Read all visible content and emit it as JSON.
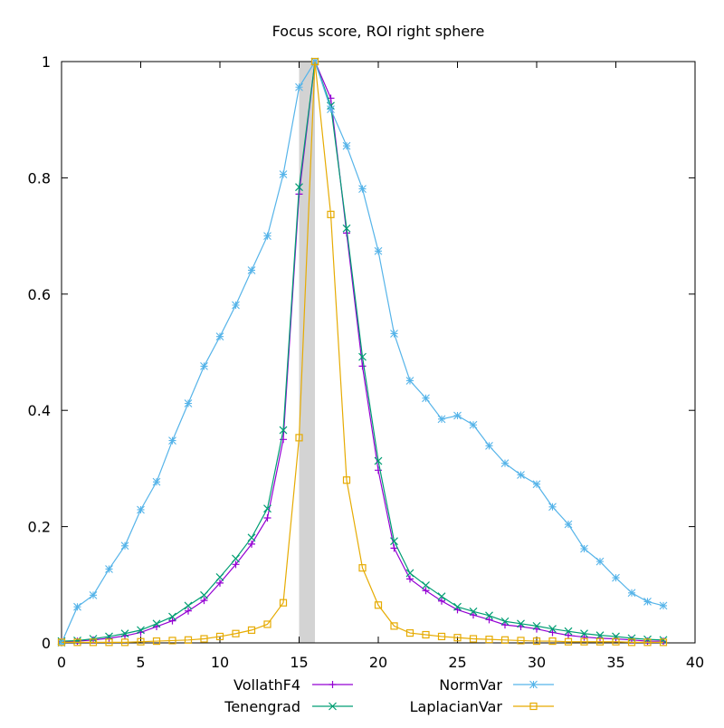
{
  "chart_data": {
    "type": "line",
    "title": "Focus score, ROI right sphere",
    "xlabel": "",
    "ylabel": "",
    "xlim": [
      0,
      40
    ],
    "ylim": [
      0,
      1
    ],
    "xticks": [
      0,
      5,
      10,
      15,
      20,
      25,
      30,
      35,
      40
    ],
    "xtick_labels": [
      "0",
      "5",
      "10",
      "15",
      "20",
      "25",
      "30",
      "35",
      "40"
    ],
    "yticks": [
      0,
      0.2,
      0.4,
      0.6,
      0.8,
      1
    ],
    "ytick_labels": [
      "0",
      "0.2",
      "0.4",
      "0.6",
      "0.8",
      "1"
    ],
    "grid": false,
    "legend_position": "bottom",
    "highlight_band": {
      "x_from": 15,
      "x_to": 16,
      "color": "#d3d3d3"
    },
    "x": [
      0,
      1,
      2,
      3,
      4,
      5,
      6,
      7,
      8,
      9,
      10,
      11,
      12,
      13,
      14,
      15,
      16,
      17,
      18,
      19,
      20,
      21,
      22,
      23,
      24,
      25,
      26,
      27,
      28,
      29,
      30,
      31,
      32,
      33,
      34,
      35,
      36,
      37,
      38
    ],
    "series": [
      {
        "name": "VollathF4",
        "color": "#9400d3",
        "marker": "plus",
        "values": [
          0.002,
          0.003,
          0.005,
          0.008,
          0.012,
          0.018,
          0.028,
          0.038,
          0.055,
          0.073,
          0.103,
          0.135,
          0.17,
          0.215,
          0.35,
          0.772,
          1.0,
          0.937,
          0.705,
          0.476,
          0.297,
          0.163,
          0.11,
          0.09,
          0.072,
          0.057,
          0.048,
          0.04,
          0.031,
          0.028,
          0.024,
          0.018,
          0.013,
          0.01,
          0.008,
          0.007,
          0.005,
          0.003,
          0.003
        ]
      },
      {
        "name": "Tenengrad",
        "color": "#009e73",
        "marker": "cross",
        "values": [
          0.003,
          0.004,
          0.007,
          0.011,
          0.016,
          0.022,
          0.033,
          0.045,
          0.064,
          0.082,
          0.113,
          0.145,
          0.181,
          0.231,
          0.366,
          0.784,
          1.0,
          0.924,
          0.713,
          0.492,
          0.313,
          0.175,
          0.12,
          0.099,
          0.08,
          0.062,
          0.054,
          0.047,
          0.037,
          0.033,
          0.029,
          0.024,
          0.02,
          0.016,
          0.013,
          0.011,
          0.008,
          0.006,
          0.005
        ]
      },
      {
        "name": "NormVar",
        "color": "#56b4e9",
        "marker": "star",
        "values": [
          0.0,
          0.062,
          0.082,
          0.127,
          0.167,
          0.229,
          0.277,
          0.348,
          0.412,
          0.476,
          0.527,
          0.581,
          0.641,
          0.7,
          0.806,
          0.956,
          1.0,
          0.918,
          0.855,
          0.781,
          0.674,
          0.532,
          0.451,
          0.421,
          0.385,
          0.391,
          0.375,
          0.339,
          0.309,
          0.289,
          0.273,
          0.234,
          0.204,
          0.162,
          0.14,
          0.112,
          0.086,
          0.071,
          0.064
        ]
      },
      {
        "name": "LaplacianVar",
        "color": "#e6ab02",
        "marker": "square",
        "values": [
          0.001,
          0.001,
          0.001,
          0.001,
          0.001,
          0.002,
          0.003,
          0.004,
          0.005,
          0.007,
          0.011,
          0.016,
          0.022,
          0.032,
          0.069,
          0.353,
          1.0,
          0.737,
          0.28,
          0.129,
          0.065,
          0.029,
          0.017,
          0.014,
          0.011,
          0.009,
          0.007,
          0.006,
          0.005,
          0.004,
          0.003,
          0.003,
          0.002,
          0.002,
          0.002,
          0.002,
          0.001,
          0.001,
          0.001
        ]
      }
    ]
  }
}
